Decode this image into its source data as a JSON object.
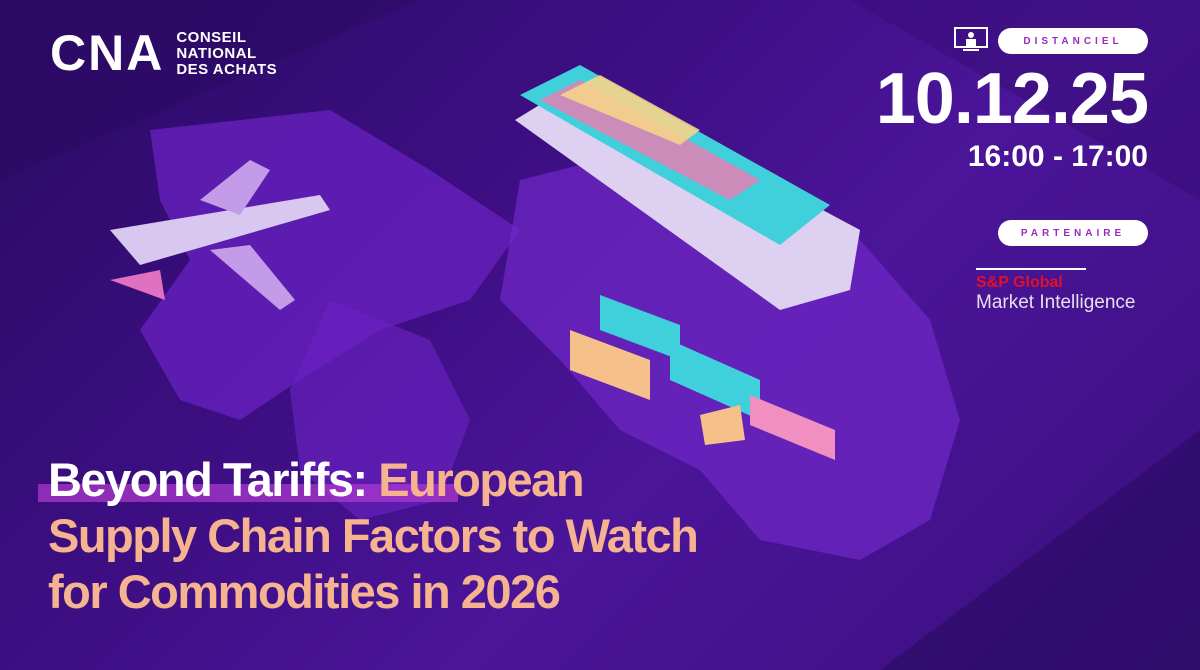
{
  "logo": {
    "mark": "CNA",
    "lines": [
      "CONSEIL",
      "NATIONAL",
      "DES ACHATS"
    ]
  },
  "event": {
    "mode_icon": "monitor-person-icon",
    "mode": "DISTANCIEL",
    "date": "10.12.25",
    "time": "16:00 - 17:00"
  },
  "partner": {
    "label": "PARTENAIRE",
    "name_line1": "S&P Global",
    "name_line2": "Market Intelligence"
  },
  "title": {
    "highlight": "Beyond Tariffs:",
    "rest_line1": " European",
    "line2": "Supply Chain Factors to Watch",
    "line3": "for Commodities in 2026"
  },
  "colors": {
    "background": "#3f0f86",
    "title_accent": "#f6b390",
    "partner_red": "#e0102a",
    "pill_text": "#9b2bbf"
  }
}
